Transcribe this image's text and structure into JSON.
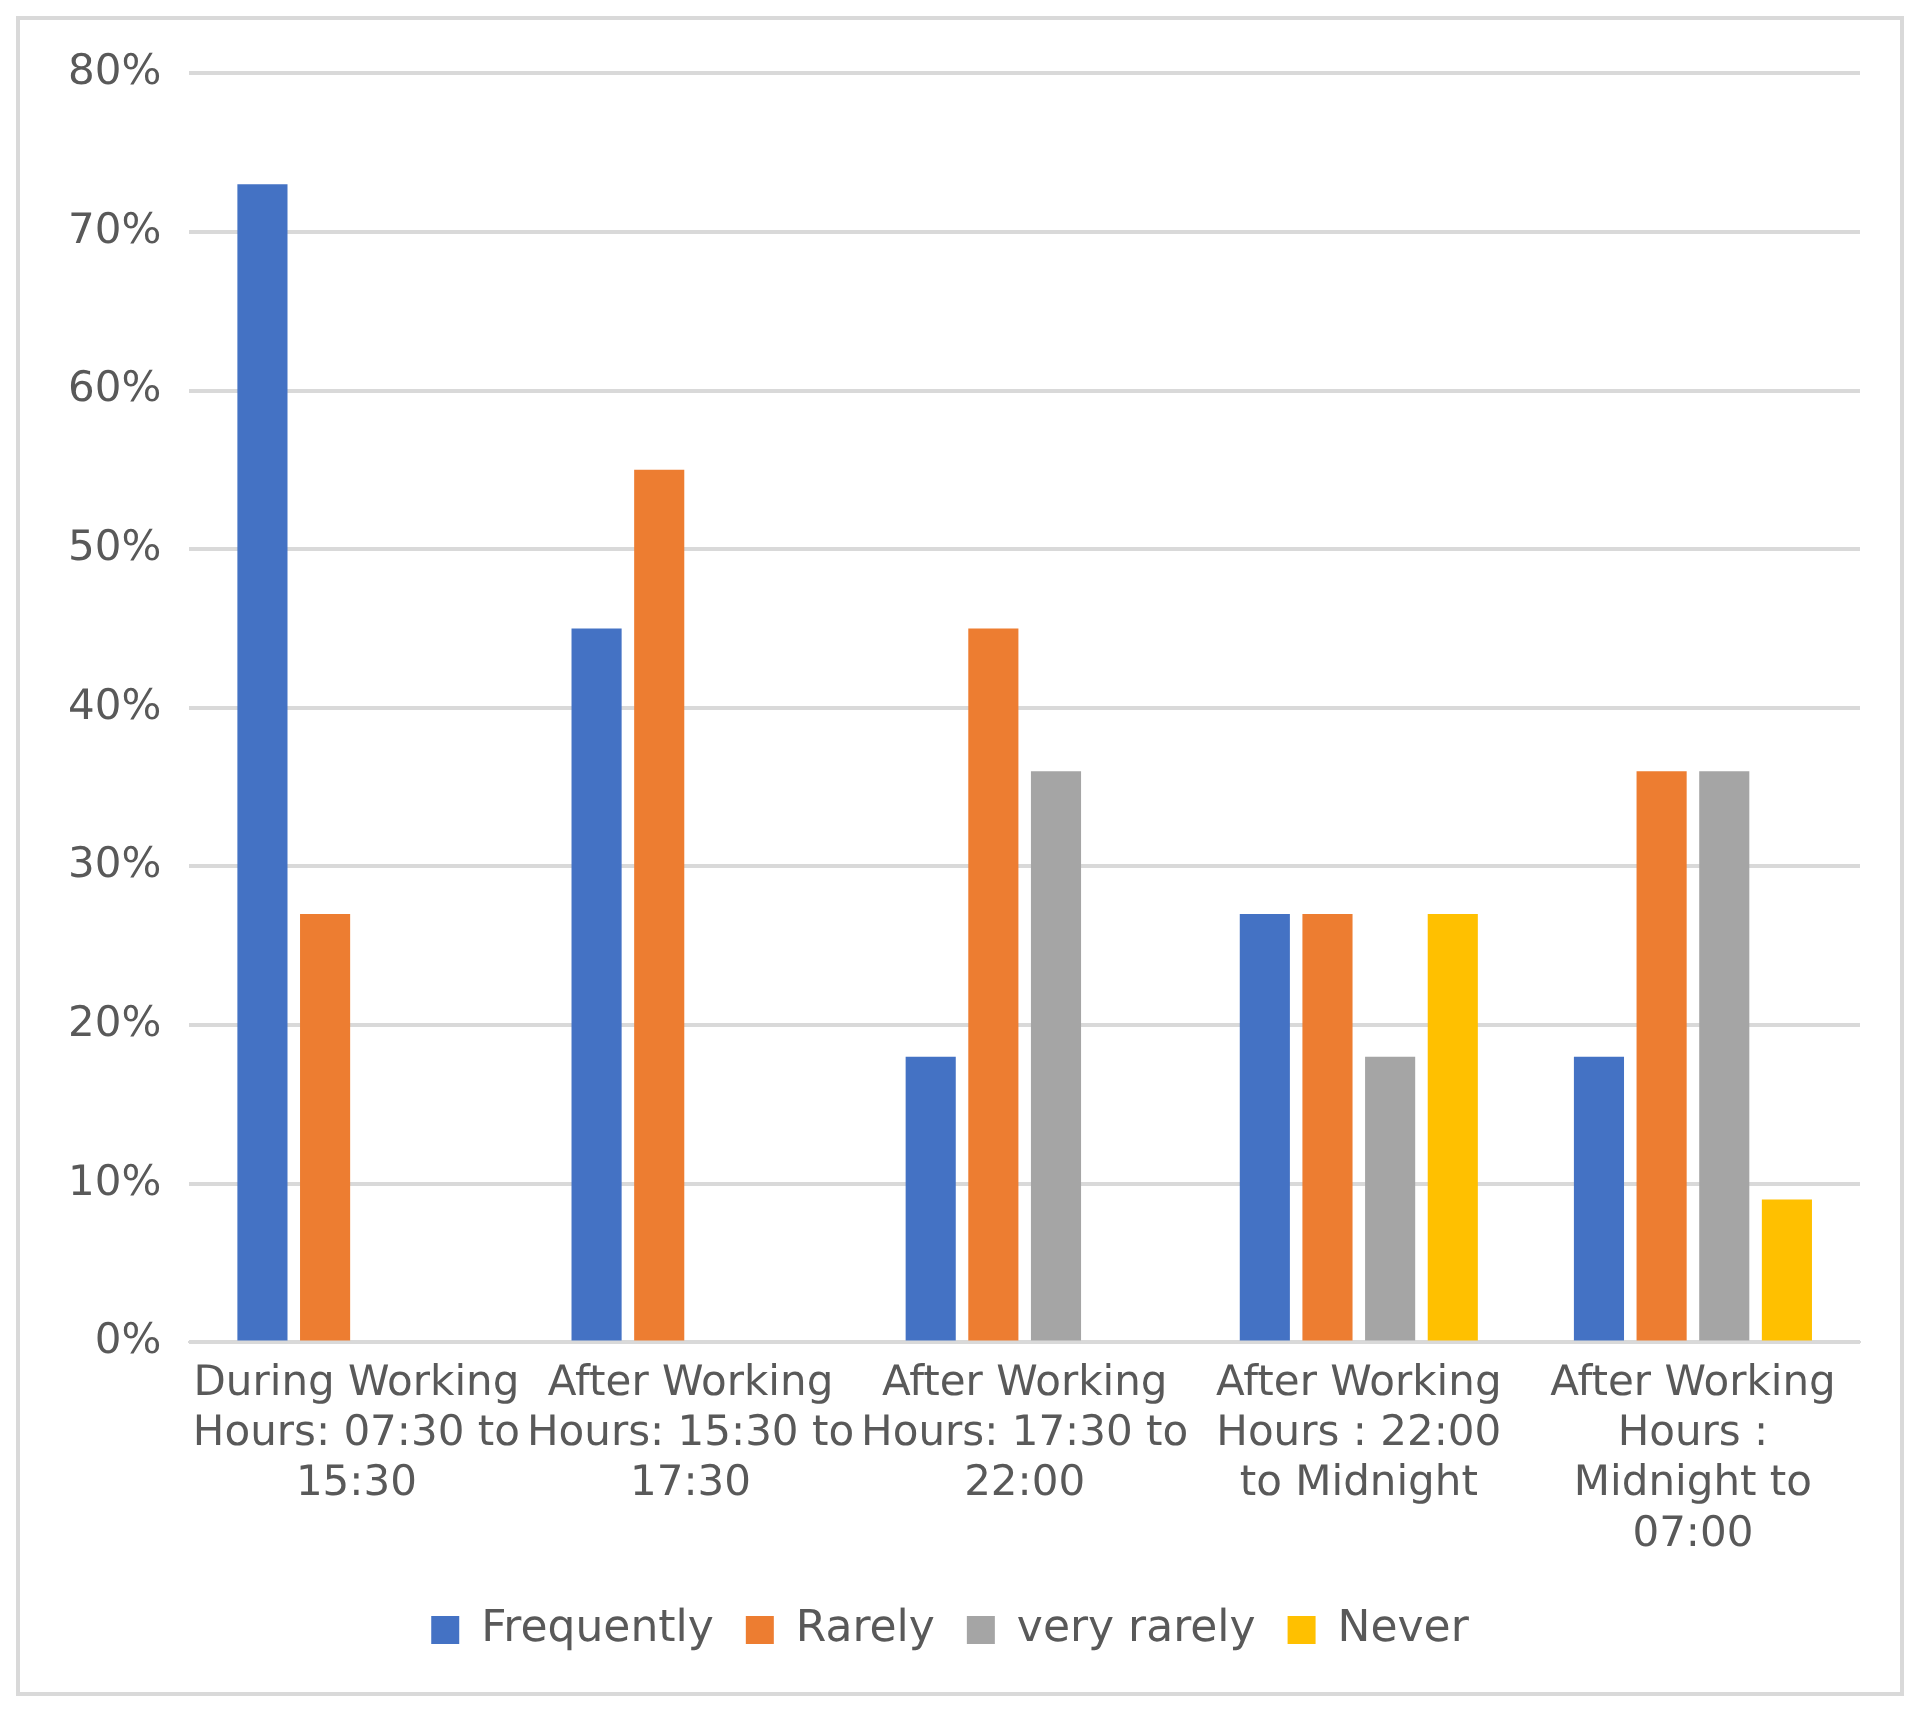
{
  "chart_data": {
    "type": "bar",
    "categories": [
      "During Working Hours: 07:30 to 15:30",
      "After Working Hours: 15:30 to 17:30",
      "After Working Hours: 17:30 to 22:00",
      "After Working Hours : 22:00 to Midnight",
      "After Working Hours : Midnight to 07:00"
    ],
    "series": [
      {
        "name": "Frequently",
        "color": "#4472c4",
        "values": [
          73,
          45,
          18,
          27,
          18
        ]
      },
      {
        "name": "Rarely",
        "color": "#ed7d31",
        "values": [
          27,
          55,
          45,
          27,
          36
        ]
      },
      {
        "name": "very rarely",
        "color": "#a5a5a5",
        "values": [
          0,
          0,
          36,
          18,
          36
        ]
      },
      {
        "name": "Never",
        "color": "#ffc000",
        "values": [
          0,
          0,
          0,
          27,
          9
        ]
      }
    ],
    "ylim": [
      0,
      80
    ],
    "yticks": [
      {
        "value": 0,
        "label": "0%"
      },
      {
        "value": 10,
        "label": "10%"
      },
      {
        "value": 20,
        "label": "20%"
      },
      {
        "value": 30,
        "label": "30%"
      },
      {
        "value": 40,
        "label": "40%"
      },
      {
        "value": 50,
        "label": "50%"
      },
      {
        "value": 60,
        "label": "60%"
      },
      {
        "value": 70,
        "label": "70%"
      },
      {
        "value": 80,
        "label": "80%"
      }
    ],
    "grid": "y",
    "legend": "bottom"
  }
}
